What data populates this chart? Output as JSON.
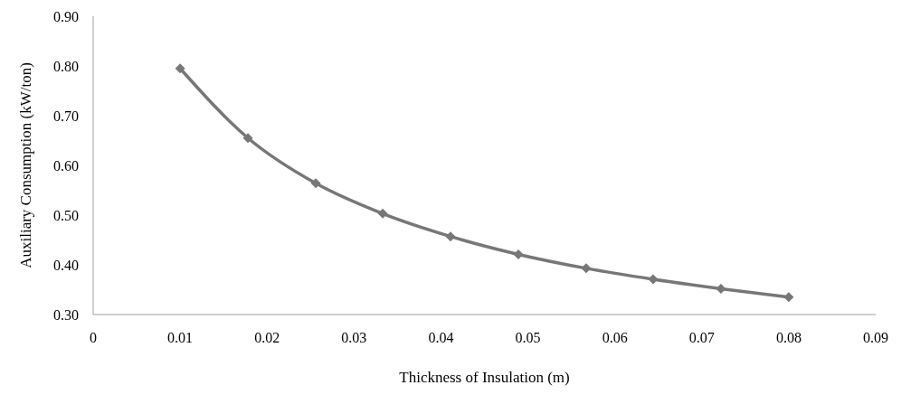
{
  "chart_data": {
    "type": "line",
    "xlabel": "Thickness of Insulation (m)",
    "ylabel": "Auxiliary Consumption (kW/ton)",
    "x": [
      0.01,
      0.0178,
      0.0256,
      0.0333,
      0.0411,
      0.0489,
      0.0567,
      0.0644,
      0.0722,
      0.08
    ],
    "series": [
      {
        "color": "#777777",
        "values": [
          0.795,
          0.655,
          0.564,
          0.503,
          0.457,
          0.421,
          0.393,
          0.371,
          0.352,
          0.335
        ]
      }
    ],
    "xlim": [
      0,
      0.09
    ],
    "xticks": [
      0,
      0.01,
      0.02,
      0.03,
      0.04,
      0.05,
      0.06,
      0.07,
      0.08,
      0.09
    ],
    "ylim": [
      0.3,
      0.9
    ],
    "yticks": [
      {
        "value": 0.3,
        "label": "0.30"
      },
      {
        "value": 0.4,
        "label": "0.40"
      },
      {
        "value": 0.5,
        "label": "0.50"
      },
      {
        "value": 0.6,
        "label": "0.60"
      },
      {
        "value": 0.7,
        "label": "0.70"
      },
      {
        "value": 0.8,
        "label": "0.80"
      },
      {
        "value": 0.9,
        "label": "0.90"
      }
    ],
    "grid": false,
    "legend": false,
    "marker": "diamond",
    "line_style": "solid"
  }
}
